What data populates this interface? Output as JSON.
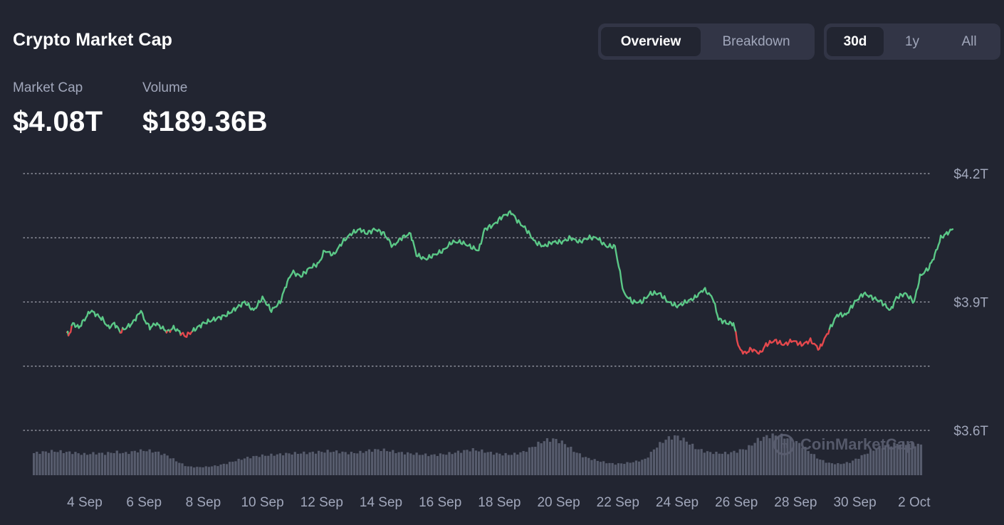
{
  "header": {
    "title": "Crypto Market Cap",
    "view_tabs": [
      {
        "label": "Overview",
        "active": true
      },
      {
        "label": "Breakdown",
        "active": false
      }
    ],
    "range_tabs": [
      {
        "label": "30d",
        "active": true
      },
      {
        "label": "1y",
        "active": false
      },
      {
        "label": "All",
        "active": false
      }
    ]
  },
  "stats": {
    "market_cap": {
      "label": "Market Cap",
      "value": "$4.08T"
    },
    "volume": {
      "label": "Volume",
      "value": "$189.36B"
    }
  },
  "watermark": {
    "text": "CoinMarketCap"
  },
  "colors": {
    "background": "#222531",
    "up": "#5bc887",
    "down": "#e5484d",
    "grid": "#c5c8d2",
    "volume": "#5b5f71",
    "muted": "#a1a7bb"
  },
  "chart_data": {
    "type": "line",
    "title": "",
    "x_unit": "days from start (3 Sep = 3)",
    "x_tick_labels": [
      "4 Sep",
      "6 Sep",
      "8 Sep",
      "10 Sep",
      "12 Sep",
      "14 Sep",
      "16 Sep",
      "18 Sep",
      "20 Sep",
      "22 Sep",
      "24 Sep",
      "26 Sep",
      "28 Sep",
      "30 Sep",
      "2 Oct"
    ],
    "y_tick_labels": [
      "$4.2T",
      "$3.9T",
      "$3.6T"
    ],
    "ylim": [
      3.6,
      4.2
    ],
    "ylim_unit": "trillion USD",
    "grid": "horizontal dotted",
    "series": [
      {
        "values_trillion_usd": [
          [
            3.4,
            3.83
          ],
          [
            3.45,
            3.82
          ],
          [
            3.6,
            3.85
          ],
          [
            3.8,
            3.84
          ],
          [
            4.0,
            3.86
          ],
          [
            4.2,
            3.88
          ],
          [
            4.4,
            3.87
          ],
          [
            4.6,
            3.86
          ],
          [
            4.8,
            3.84
          ],
          [
            5.0,
            3.85
          ],
          [
            5.2,
            3.83
          ],
          [
            5.4,
            3.84
          ],
          [
            5.6,
            3.85
          ],
          [
            5.8,
            3.87
          ],
          [
            5.9,
            3.88
          ],
          [
            6.0,
            3.86
          ],
          [
            6.2,
            3.84
          ],
          [
            6.4,
            3.85
          ],
          [
            6.6,
            3.84
          ],
          [
            6.8,
            3.83
          ],
          [
            7.0,
            3.84
          ],
          [
            7.2,
            3.83
          ],
          [
            7.4,
            3.82
          ],
          [
            7.6,
            3.83
          ],
          [
            7.8,
            3.84
          ],
          [
            8.0,
            3.85
          ],
          [
            8.4,
            3.86
          ],
          [
            8.8,
            3.87
          ],
          [
            9.2,
            3.89
          ],
          [
            9.4,
            3.9
          ],
          [
            9.7,
            3.88
          ],
          [
            10.0,
            3.91
          ],
          [
            10.3,
            3.88
          ],
          [
            10.6,
            3.9
          ],
          [
            10.8,
            3.94
          ],
          [
            11.0,
            3.97
          ],
          [
            11.3,
            3.96
          ],
          [
            11.6,
            3.98
          ],
          [
            11.9,
            3.99
          ],
          [
            12.1,
            4.02
          ],
          [
            12.4,
            4.01
          ],
          [
            12.7,
            4.04
          ],
          [
            13.0,
            4.06
          ],
          [
            13.3,
            4.07
          ],
          [
            13.5,
            4.06
          ],
          [
            13.8,
            4.07
          ],
          [
            14.1,
            4.06
          ],
          [
            14.4,
            4.03
          ],
          [
            14.7,
            4.05
          ],
          [
            15.0,
            4.06
          ],
          [
            15.2,
            4.01
          ],
          [
            15.5,
            4.0
          ],
          [
            15.8,
            4.01
          ],
          [
            16.1,
            4.02
          ],
          [
            16.4,
            4.04
          ],
          [
            16.7,
            4.04
          ],
          [
            17.0,
            4.03
          ],
          [
            17.3,
            4.02
          ],
          [
            17.5,
            4.07
          ],
          [
            17.8,
            4.08
          ],
          [
            18.1,
            4.1
          ],
          [
            18.4,
            4.11
          ],
          [
            18.6,
            4.09
          ],
          [
            18.9,
            4.07
          ],
          [
            19.2,
            4.04
          ],
          [
            19.5,
            4.03
          ],
          [
            19.8,
            4.04
          ],
          [
            20.1,
            4.04
          ],
          [
            20.4,
            4.05
          ],
          [
            20.7,
            4.04
          ],
          [
            21.0,
            4.05
          ],
          [
            21.3,
            4.05
          ],
          [
            21.6,
            4.03
          ],
          [
            21.9,
            4.03
          ],
          [
            22.2,
            3.92
          ],
          [
            22.5,
            3.9
          ],
          [
            22.8,
            3.9
          ],
          [
            23.1,
            3.92
          ],
          [
            23.4,
            3.92
          ],
          [
            23.7,
            3.9
          ],
          [
            24.0,
            3.89
          ],
          [
            24.3,
            3.9
          ],
          [
            24.6,
            3.91
          ],
          [
            24.9,
            3.93
          ],
          [
            25.2,
            3.91
          ],
          [
            25.4,
            3.86
          ],
          [
            25.7,
            3.85
          ],
          [
            25.9,
            3.85
          ],
          [
            26.1,
            3.79
          ],
          [
            26.3,
            3.78
          ],
          [
            26.5,
            3.79
          ],
          [
            26.8,
            3.78
          ],
          [
            27.0,
            3.8
          ],
          [
            27.3,
            3.81
          ],
          [
            27.6,
            3.8
          ],
          [
            27.9,
            3.81
          ],
          [
            28.2,
            3.8
          ],
          [
            28.5,
            3.81
          ],
          [
            28.8,
            3.79
          ],
          [
            29.1,
            3.83
          ],
          [
            29.4,
            3.87
          ],
          [
            29.7,
            3.87
          ],
          [
            30.0,
            3.9
          ],
          [
            30.3,
            3.92
          ],
          [
            30.6,
            3.91
          ],
          [
            30.9,
            3.9
          ],
          [
            31.2,
            3.88
          ],
          [
            31.4,
            3.91
          ],
          [
            31.7,
            3.92
          ],
          [
            32.0,
            3.9
          ],
          [
            32.2,
            3.96
          ],
          [
            32.5,
            3.98
          ],
          [
            32.7,
            4.01
          ],
          [
            32.9,
            4.05
          ],
          [
            33.1,
            4.06
          ],
          [
            33.3,
            4.07
          ]
        ]
      }
    ],
    "volume_bars": {
      "type": "bar",
      "relative_level": [
        0.55,
        0.58,
        0.6,
        0.58,
        0.56,
        0.52,
        0.55,
        0.54,
        0.58,
        0.55,
        0.6,
        0.62,
        0.58,
        0.5,
        0.35,
        0.22,
        0.2,
        0.21,
        0.24,
        0.3,
        0.38,
        0.44,
        0.48,
        0.5,
        0.52,
        0.54,
        0.55,
        0.56,
        0.58,
        0.6,
        0.58,
        0.55,
        0.57,
        0.62,
        0.64,
        0.6,
        0.56,
        0.54,
        0.52,
        0.5,
        0.52,
        0.55,
        0.6,
        0.64,
        0.6,
        0.55,
        0.52,
        0.52,
        0.58,
        0.72,
        0.86,
        0.9,
        0.8,
        0.6,
        0.45,
        0.38,
        0.32,
        0.28,
        0.3,
        0.34,
        0.4,
        0.7,
        0.9,
        0.98,
        0.85,
        0.66,
        0.58,
        0.55,
        0.55,
        0.6,
        0.68,
        0.88,
        0.98,
        1.0,
        0.92,
        0.8,
        0.6,
        0.4,
        0.3,
        0.28,
        0.32,
        0.45,
        0.6,
        0.7,
        0.76,
        0.8,
        0.78,
        0.75
      ]
    }
  }
}
